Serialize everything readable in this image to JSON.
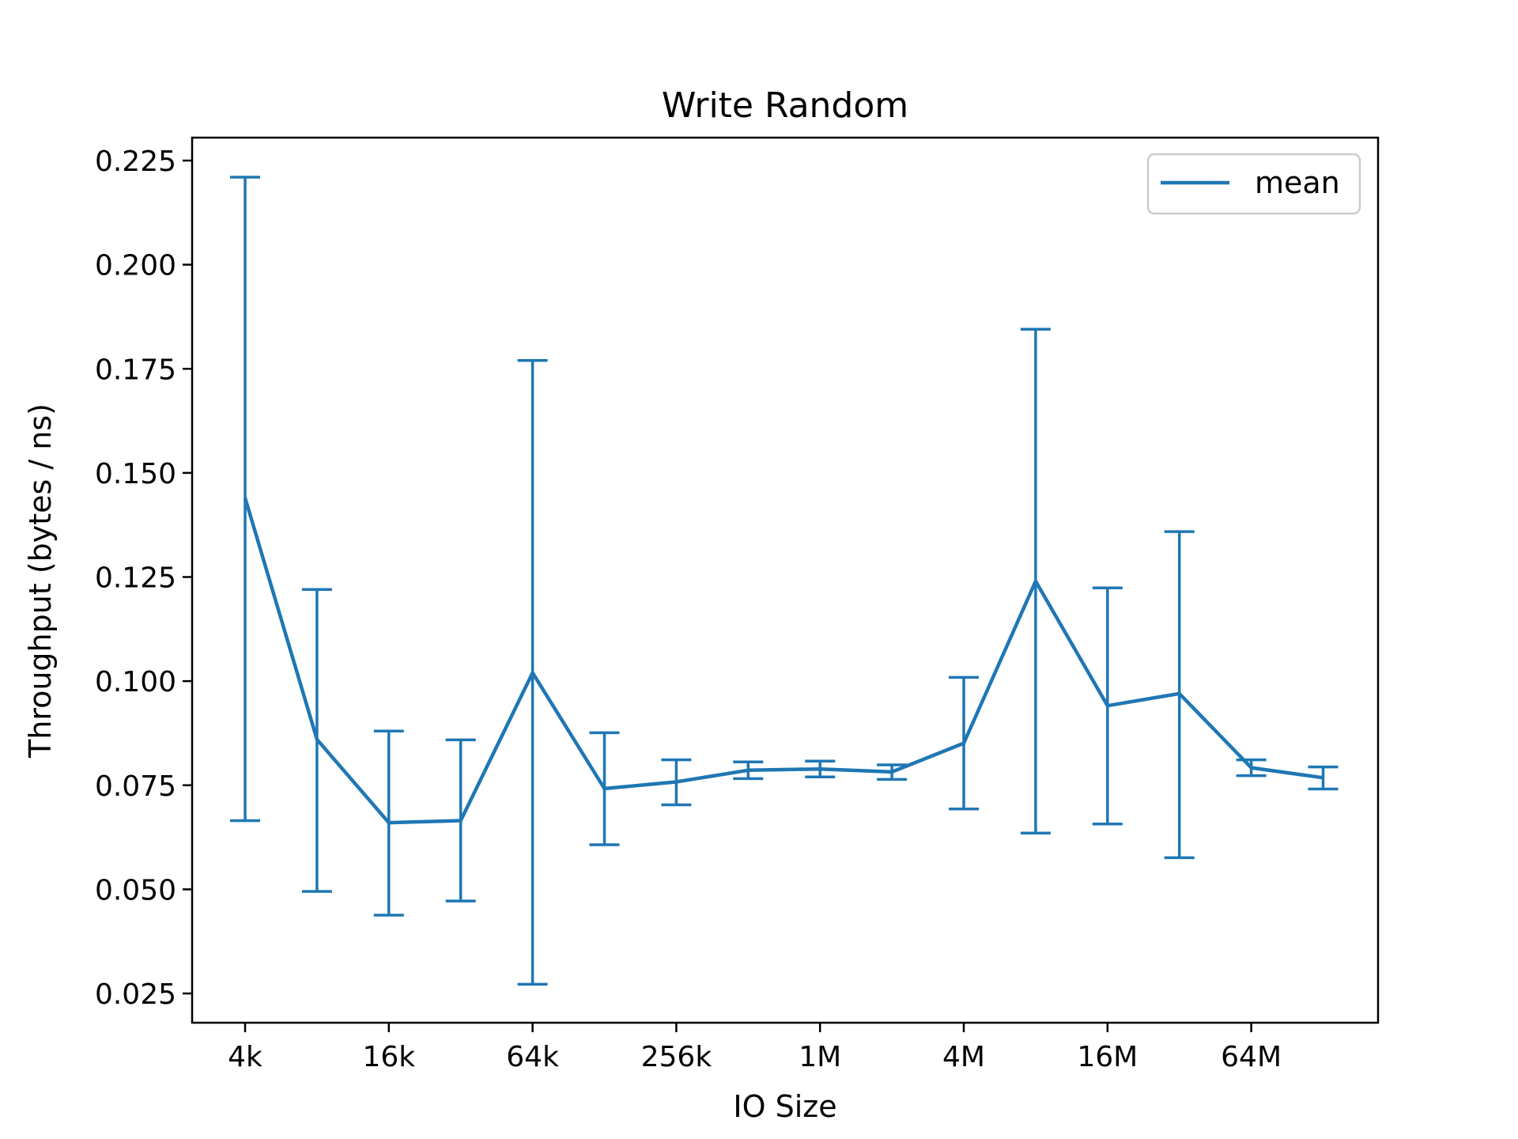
{
  "chart_data": {
    "type": "line",
    "title": "Write Random",
    "xlabel": "IO Size",
    "ylabel": "Throughput (bytes / ns)",
    "x_scale": "log2",
    "x_ticks": [
      "4k",
      "16k",
      "64k",
      "256k",
      "1M",
      "4M",
      "16M",
      "64M"
    ],
    "y_ticks": [
      "0.025",
      "0.050",
      "0.075",
      "0.100",
      "0.125",
      "0.150",
      "0.175",
      "0.200",
      "0.225"
    ],
    "ylim": [
      0.018,
      0.23
    ],
    "grid": false,
    "legend": {
      "position": "top-right",
      "entries": [
        "mean"
      ]
    },
    "colors": {
      "series": "#1f77b4",
      "axes": "#000000",
      "legend_border": "#cccccc"
    },
    "x": [
      "4k",
      "8k",
      "16k",
      "32k",
      "64k",
      "128k",
      "256k",
      "512k",
      "1M",
      "2M",
      "4M",
      "8M",
      "16M",
      "32M",
      "64M",
      "128M"
    ],
    "series": [
      {
        "name": "mean",
        "values": [
          0.144,
          0.086,
          0.066,
          0.0665,
          0.102,
          0.0742,
          0.0758,
          0.0786,
          0.0789,
          0.0782,
          0.0851,
          0.124,
          0.0941,
          0.097,
          0.0792,
          0.0768
        ],
        "error_low": [
          0.0665,
          0.0495,
          0.0438,
          0.0472,
          0.0272,
          0.0607,
          0.0703,
          0.0766,
          0.077,
          0.0764,
          0.0693,
          0.0635,
          0.0657,
          0.0576,
          0.0773,
          0.0741
        ],
        "error_high": [
          0.221,
          0.122,
          0.088,
          0.0859,
          0.177,
          0.0876,
          0.0811,
          0.0806,
          0.0808,
          0.0799,
          0.1009,
          0.1845,
          0.1224,
          0.1359,
          0.0811,
          0.0794
        ]
      }
    ]
  }
}
